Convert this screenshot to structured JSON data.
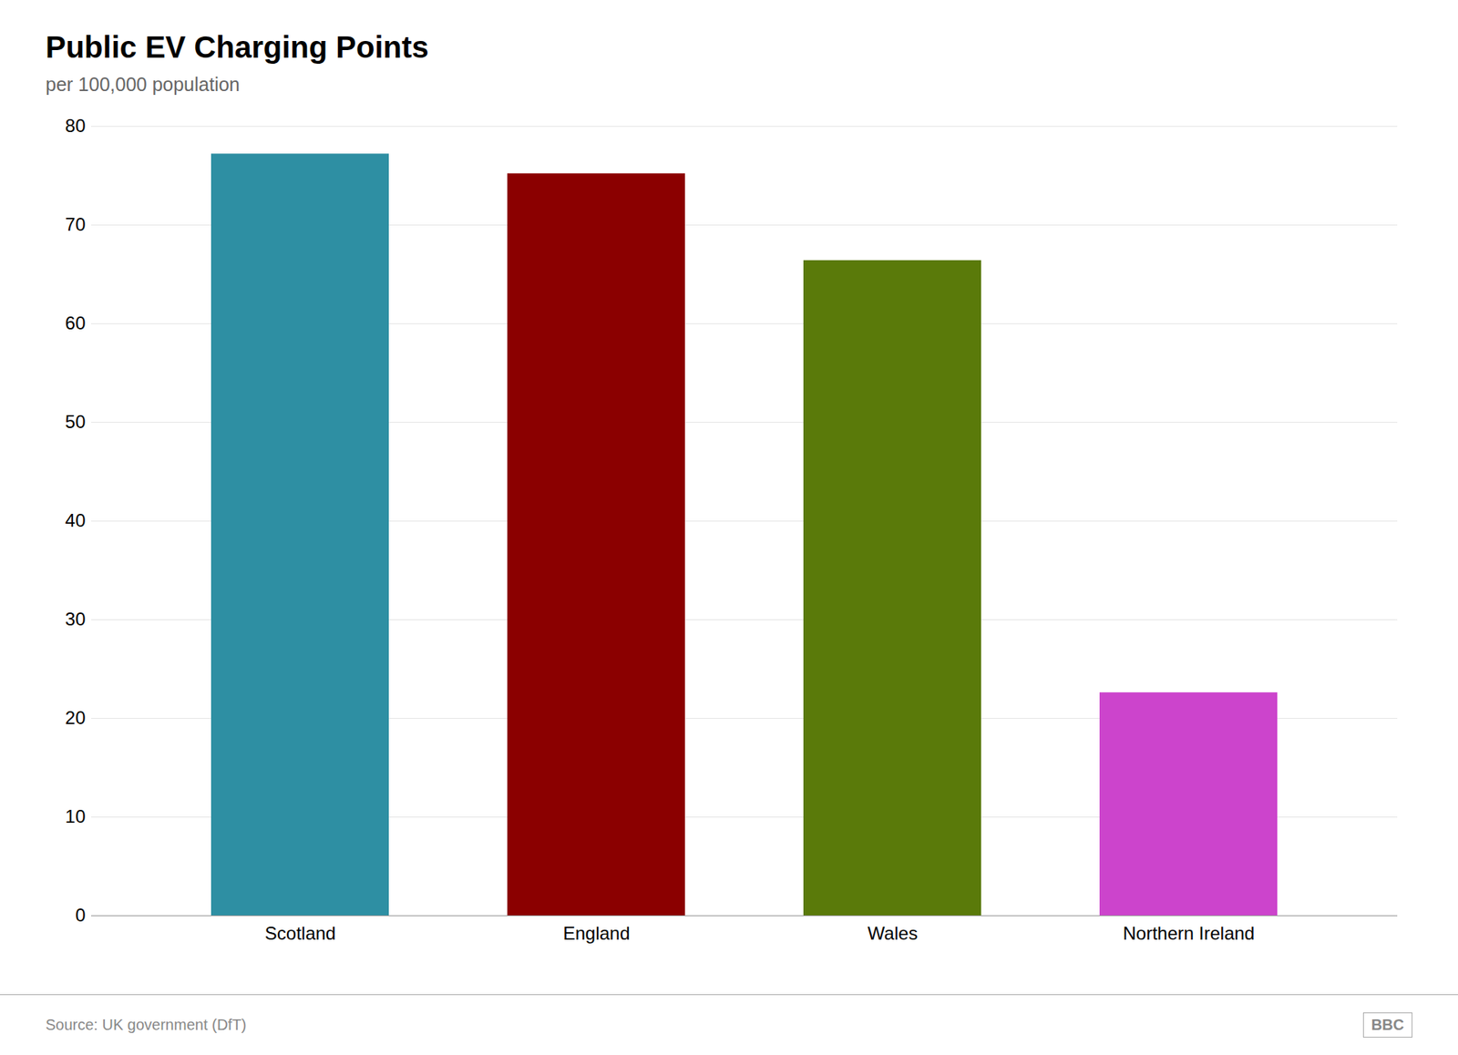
{
  "chart_data": {
    "type": "bar",
    "title": "Public EV Charging Points",
    "subtitle": "per 100,000 population",
    "categories": [
      "Scotland",
      "England",
      "Wales",
      "Northern Ireland"
    ],
    "values": [
      77.2,
      75.2,
      66.4,
      22.6
    ],
    "colors": [
      "#2e8fa3",
      "#8b0000",
      "#5a7a0a",
      "#cc44cc"
    ],
    "ylim": [
      0,
      80
    ],
    "yticks": [
      0,
      10,
      20,
      30,
      40,
      50,
      60,
      70,
      80
    ],
    "grid": true,
    "annotations": [
      "Source: UK government (DfT)",
      "BBC"
    ]
  }
}
